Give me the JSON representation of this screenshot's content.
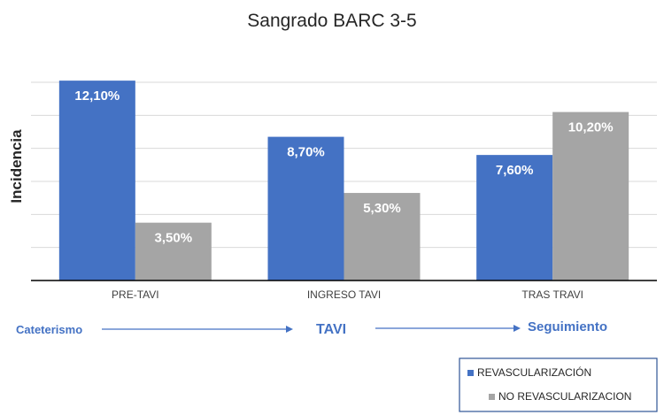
{
  "chart_data": {
    "type": "bar",
    "title": "Sangrado BARC 3-5",
    "ylabel": "Incidencia",
    "xlabel": "",
    "categories": [
      "PRE-TAVI",
      "INGRESO TAVI",
      "TRAS TRAVI"
    ],
    "series": [
      {
        "name": "REVASCULARIZACIÓN",
        "values": [
          12.1,
          8.7,
          7.6
        ],
        "labels": [
          "12,10%",
          "8,70%",
          "7,60%"
        ],
        "color": "#4472c4"
      },
      {
        "name": "NO REVASCULARIZACION",
        "values": [
          3.5,
          5.3,
          10.2
        ],
        "labels": [
          "3,50%",
          "5,30%",
          "10,20%"
        ],
        "color": "#a5a5a5"
      }
    ],
    "ylim": [
      0,
      12
    ],
    "y_gridlines": [
      0,
      2,
      4,
      6,
      8,
      10,
      12
    ],
    "y_tick_labels_shown": false,
    "grid": true,
    "legend_position": "bottom-right"
  },
  "timeline": {
    "items": [
      "Cateterismo",
      "TAVI",
      "Seguimiento"
    ],
    "color": "#4472c4"
  },
  "colors": {
    "grid": "#d9d9d9",
    "axis": "#000000",
    "background": "#ffffff"
  }
}
